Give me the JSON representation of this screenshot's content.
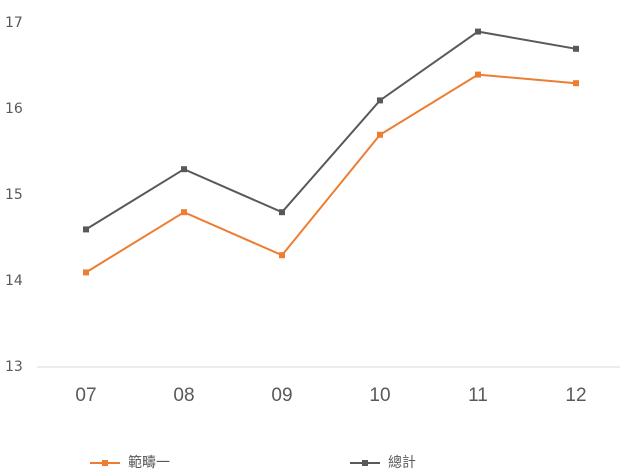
{
  "chart_data": {
    "type": "line",
    "categories": [
      "07",
      "08",
      "09",
      "10",
      "11",
      "12"
    ],
    "series": [
      {
        "name": "範疇一",
        "color": "#ed7d31",
        "values": [
          14.1,
          14.8,
          14.3,
          15.7,
          16.4,
          16.3
        ]
      },
      {
        "name": "總計",
        "color": "#595959",
        "values": [
          14.6,
          15.3,
          14.8,
          16.1,
          16.9,
          16.7
        ]
      }
    ],
    "ylim": [
      13,
      17
    ],
    "yticks": [
      13,
      14,
      15,
      16,
      17
    ],
    "grid": false,
    "legend": "bottom"
  }
}
